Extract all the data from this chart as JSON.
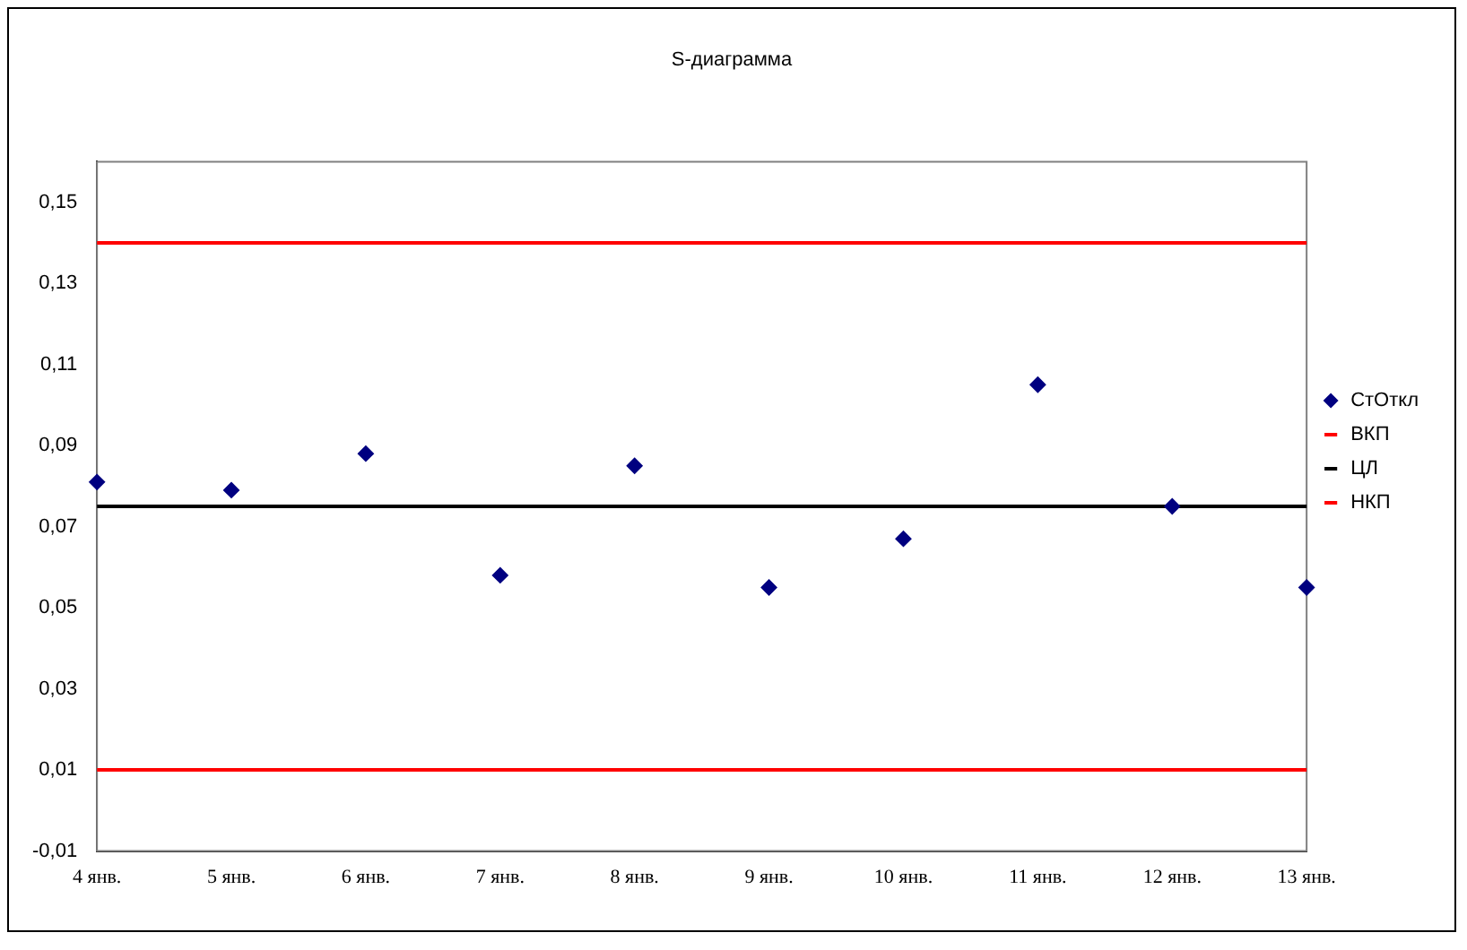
{
  "chart_data": {
    "type": "scatter",
    "title": "S-диаграмма",
    "categories": [
      "4 янв.",
      "5 янв.",
      "6 янв.",
      "7 янв.",
      "8 янв.",
      "9 янв.",
      "10 янв.",
      "11 янв.",
      "12 янв.",
      "13 янв."
    ],
    "series": [
      {
        "name": "СтОткл",
        "marker": "diamond",
        "color": "#000080",
        "values": [
          0.081,
          0.079,
          0.088,
          0.058,
          0.085,
          0.055,
          0.067,
          0.105,
          0.075,
          0.055
        ]
      },
      {
        "name": "ВКП",
        "type": "line",
        "marker": "none",
        "color": "#ff0000",
        "values": [
          0.14,
          0.14,
          0.14,
          0.14,
          0.14,
          0.14,
          0.14,
          0.14,
          0.14,
          0.14
        ]
      },
      {
        "name": "ЦЛ",
        "type": "line",
        "marker": "none",
        "color": "#000000",
        "values": [
          0.075,
          0.075,
          0.075,
          0.075,
          0.075,
          0.075,
          0.075,
          0.075,
          0.075,
          0.075
        ]
      },
      {
        "name": "НКП",
        "type": "line",
        "marker": "none",
        "color": "#ff0000",
        "values": [
          0.01,
          0.01,
          0.01,
          0.01,
          0.01,
          0.01,
          0.01,
          0.01,
          0.01,
          0.01
        ]
      }
    ],
    "ylim": [
      -0.01,
      0.16
    ],
    "yticks": [
      {
        "value": -0.01,
        "label": "-0,01"
      },
      {
        "value": 0.01,
        "label": "0,01"
      },
      {
        "value": 0.03,
        "label": "0,03"
      },
      {
        "value": 0.05,
        "label": "0,05"
      },
      {
        "value": 0.07,
        "label": "0,07"
      },
      {
        "value": 0.09,
        "label": "0,09"
      },
      {
        "value": 0.11,
        "label": "0,11"
      },
      {
        "value": 0.13,
        "label": "0,13"
      },
      {
        "value": 0.15,
        "label": "0,15"
      }
    ],
    "grid": false,
    "legend": "right",
    "line_style": "solid"
  }
}
